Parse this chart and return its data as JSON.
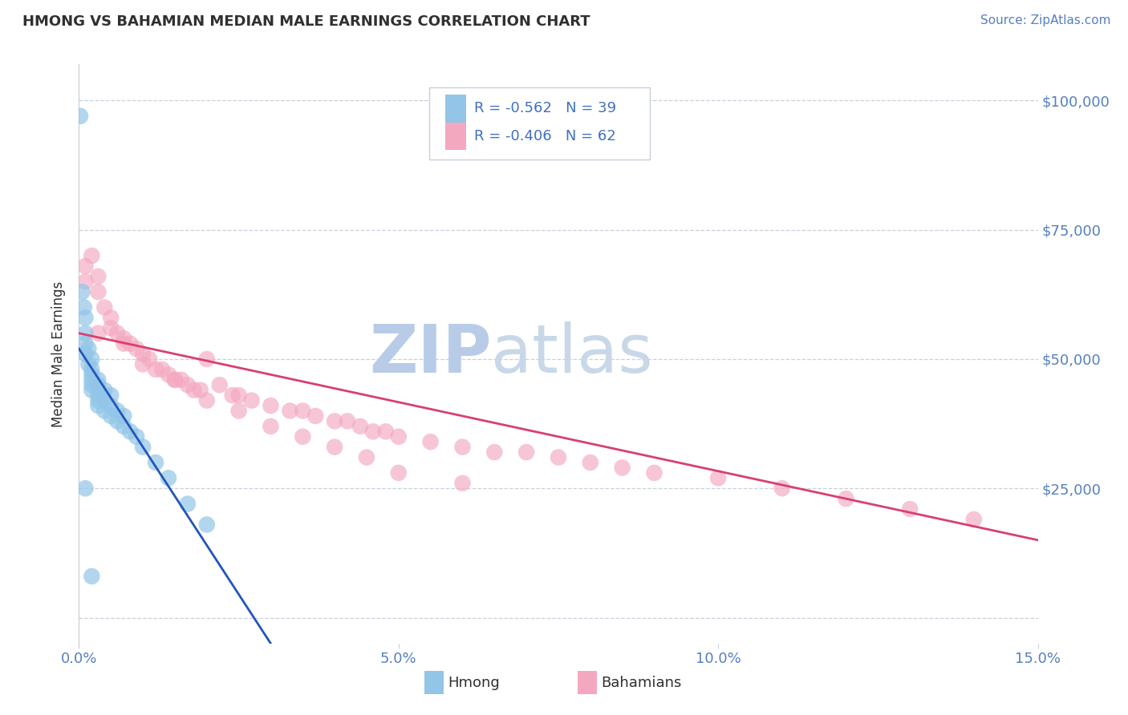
{
  "title": "HMONG VS BAHAMIAN MEDIAN MALE EARNINGS CORRELATION CHART",
  "source_text": "Source: ZipAtlas.com",
  "ylabel": "Median Male Earnings",
  "xlim": [
    0.0,
    0.15
  ],
  "ylim": [
    -5000,
    107000
  ],
  "yticks": [
    0,
    25000,
    50000,
    75000,
    100000
  ],
  "ytick_labels": [
    "",
    "$25,000",
    "$50,000",
    "$75,000",
    "$100,000"
  ],
  "xticks": [
    0.0,
    0.05,
    0.1,
    0.15
  ],
  "xtick_labels": [
    "0.0%",
    "5.0%",
    "10.0%",
    "15.0%"
  ],
  "hmong_R": -0.562,
  "hmong_N": 39,
  "bahamian_R": -0.406,
  "bahamian_N": 62,
  "hmong_color": "#92C5E8",
  "bahamian_color": "#F4A8C0",
  "hmong_line_color": "#2255BB",
  "bahamian_line_color": "#D84070",
  "watermark_zip_color": "#B8CCE8",
  "watermark_atlas_color": "#C8D8E8",
  "title_color": "#303030",
  "axis_label_color": "#303030",
  "tick_color": "#5580C0",
  "source_color": "#5580C0",
  "legend_r_color": "#4070C0",
  "grid_color": "#C8D0DC",
  "hmong_x": [
    0.0002,
    0.0005,
    0.0008,
    0.001,
    0.001,
    0.001,
    0.001,
    0.0015,
    0.0015,
    0.002,
    0.002,
    0.002,
    0.002,
    0.002,
    0.002,
    0.003,
    0.003,
    0.003,
    0.003,
    0.003,
    0.004,
    0.004,
    0.004,
    0.005,
    0.005,
    0.005,
    0.006,
    0.006,
    0.007,
    0.007,
    0.008,
    0.009,
    0.01,
    0.012,
    0.014,
    0.017,
    0.02,
    0.001,
    0.002
  ],
  "hmong_y": [
    97000,
    63000,
    60000,
    58000,
    55000,
    53000,
    51000,
    52000,
    49000,
    50000,
    48000,
    47000,
    46000,
    45000,
    44000,
    46000,
    45000,
    43000,
    42000,
    41000,
    44000,
    42000,
    40000,
    43000,
    41000,
    39000,
    40000,
    38000,
    39000,
    37000,
    36000,
    35000,
    33000,
    30000,
    27000,
    22000,
    18000,
    25000,
    8000
  ],
  "bahamian_x": [
    0.001,
    0.001,
    0.002,
    0.003,
    0.003,
    0.004,
    0.005,
    0.005,
    0.006,
    0.007,
    0.008,
    0.009,
    0.01,
    0.011,
    0.012,
    0.013,
    0.014,
    0.015,
    0.016,
    0.017,
    0.018,
    0.019,
    0.02,
    0.022,
    0.024,
    0.025,
    0.027,
    0.03,
    0.033,
    0.035,
    0.037,
    0.04,
    0.042,
    0.044,
    0.046,
    0.048,
    0.05,
    0.055,
    0.06,
    0.065,
    0.07,
    0.075,
    0.08,
    0.085,
    0.09,
    0.1,
    0.11,
    0.12,
    0.13,
    0.14,
    0.003,
    0.007,
    0.01,
    0.015,
    0.02,
    0.025,
    0.03,
    0.035,
    0.04,
    0.045,
    0.05,
    0.06
  ],
  "bahamian_y": [
    68000,
    65000,
    70000,
    66000,
    63000,
    60000,
    58000,
    56000,
    55000,
    54000,
    53000,
    52000,
    51000,
    50000,
    48000,
    48000,
    47000,
    46000,
    46000,
    45000,
    44000,
    44000,
    50000,
    45000,
    43000,
    43000,
    42000,
    41000,
    40000,
    40000,
    39000,
    38000,
    38000,
    37000,
    36000,
    36000,
    35000,
    34000,
    33000,
    32000,
    32000,
    31000,
    30000,
    29000,
    28000,
    27000,
    25000,
    23000,
    21000,
    19000,
    55000,
    53000,
    49000,
    46000,
    42000,
    40000,
    37000,
    35000,
    33000,
    31000,
    28000,
    26000
  ],
  "hmong_line_x": [
    0.0,
    0.03
  ],
  "hmong_line_y": [
    52000,
    -5000
  ],
  "bahamian_line_x": [
    0.0,
    0.15
  ],
  "bahamian_line_y": [
    55000,
    15000
  ]
}
